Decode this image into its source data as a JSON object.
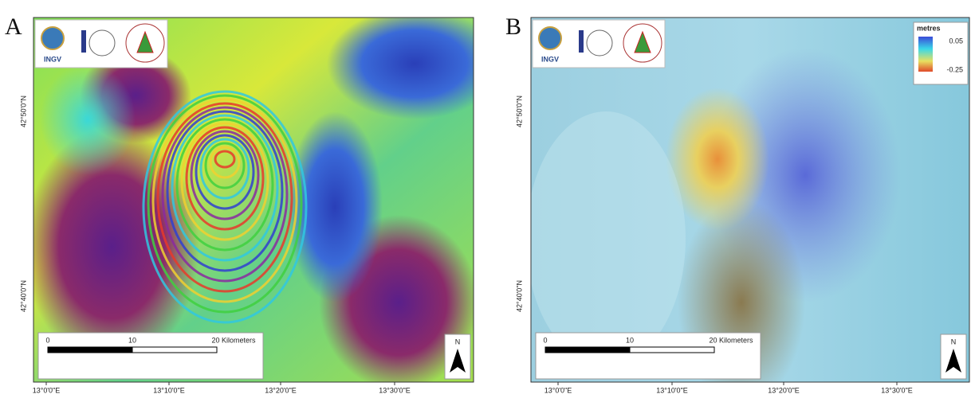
{
  "panels": [
    {
      "letter": "A",
      "logo_text": "INGV",
      "lon_labels": [
        "13°0'0\"E",
        "13°10'0\"E",
        "13°20'0\"E",
        "13°30'0\"E"
      ],
      "lat_labels": [
        "42°50'0\"N",
        "42°40'0\"N"
      ],
      "scale_bar": {
        "labels": [
          "0",
          "10",
          "20 Kilometers"
        ]
      },
      "north": "N"
    },
    {
      "letter": "B",
      "logo_text": "INGV",
      "lon_labels": [
        "13°0'0\"E",
        "13°10'0\"E",
        "13°20'0\"E",
        "13°30'0\"E"
      ],
      "lat_labels": [
        "42°50'0\"N",
        "42°40'0\"N"
      ],
      "scale_bar": {
        "labels": [
          "0",
          "10",
          "20 Kilometers"
        ]
      },
      "north": "N",
      "legend": {
        "title": "metres",
        "max": "0.05",
        "min": "-0.25"
      }
    }
  ]
}
